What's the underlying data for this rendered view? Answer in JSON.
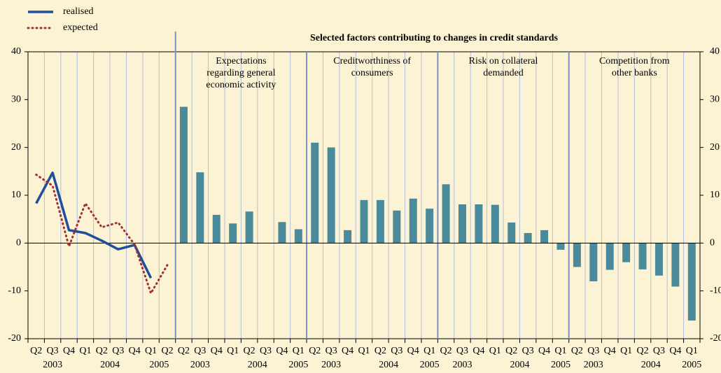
{
  "chart_data": {
    "type": "combo",
    "title": "Selected factors contributing to changes in credit standards",
    "categories": [
      "Q2",
      "Q3",
      "Q4",
      "Q1",
      "Q2",
      "Q3",
      "Q4",
      "Q1",
      "Q2",
      "Q2",
      "Q3",
      "Q4",
      "Q1",
      "Q2",
      "Q3",
      "Q4",
      "Q1",
      "Q2",
      "Q3",
      "Q4",
      "Q1",
      "Q2",
      "Q3",
      "Q4",
      "Q1",
      "Q2",
      "Q3",
      "Q4",
      "Q1",
      "Q2",
      "Q3",
      "Q4",
      "Q1",
      "Q2",
      "Q3",
      "Q4",
      "Q1",
      "Q2",
      "Q3",
      "Q4",
      "Q1"
    ],
    "year_groups": [
      {
        "label": "2003",
        "size": 3
      },
      {
        "label": "2004",
        "size": 4
      },
      {
        "label": "2005",
        "size": 2
      },
      {
        "label": "2003",
        "size": 3
      },
      {
        "label": "2004",
        "size": 4
      },
      {
        "label": "2005",
        "size": 1
      },
      {
        "label": "2003",
        "size": 3
      },
      {
        "label": "2004",
        "size": 4
      },
      {
        "label": "2005",
        "size": 1
      },
      {
        "label": "2003",
        "size": 3
      },
      {
        "label": "2004",
        "size": 4
      },
      {
        "label": "2005",
        "size": 1
      },
      {
        "label": "2003",
        "size": 3
      },
      {
        "label": "2004",
        "size": 4
      },
      {
        "label": "2005",
        "size": 1
      }
    ],
    "sections": [
      {
        "size": 9
      },
      {
        "label": [
          "Expectations",
          "regarding general",
          "economic activity"
        ],
        "size": 8
      },
      {
        "label": [
          "Creditworthiness of",
          "consumers"
        ],
        "size": 8
      },
      {
        "label": [
          "Risk on collateral",
          "demanded"
        ],
        "size": 8
      },
      {
        "label": [
          "Competition from",
          "other banks"
        ],
        "size": 8
      }
    ],
    "series": [
      {
        "name": "realised",
        "type": "line",
        "style": "solid",
        "color": "#1f4e9c",
        "values": [
          8.3,
          14.7,
          2.7,
          2.1,
          0.5,
          -1.3,
          -0.4,
          -7.3,
          null,
          null,
          null,
          null,
          null,
          null,
          null,
          null,
          null,
          null,
          null,
          null,
          null,
          null,
          null,
          null,
          null,
          null,
          null,
          null,
          null,
          null,
          null,
          null,
          null,
          null,
          null,
          null,
          null,
          null,
          null,
          null,
          null
        ]
      },
      {
        "name": "expected",
        "type": "line",
        "style": "dotted",
        "color": "#a33030",
        "values": [
          14.3,
          12.0,
          -0.7,
          8.3,
          3.3,
          4.3,
          -0.3,
          -10.5,
          -4.6,
          null,
          null,
          null,
          null,
          null,
          null,
          null,
          null,
          null,
          null,
          null,
          null,
          null,
          null,
          null,
          null,
          null,
          null,
          null,
          null,
          null,
          null,
          null,
          null,
          null,
          null,
          null,
          null,
          null,
          null,
          null,
          null
        ]
      }
    ],
    "bars": {
      "color": "#4b8a9b",
      "values": [
        null,
        null,
        null,
        null,
        null,
        null,
        null,
        null,
        null,
        28.5,
        14.8,
        5.9,
        4.1,
        6.6,
        0,
        4.4,
        2.9,
        21.0,
        20.0,
        2.7,
        9.0,
        9.0,
        6.8,
        9.3,
        7.2,
        12.3,
        8.1,
        8.1,
        8.0,
        4.3,
        2.1,
        2.7,
        -1.4,
        -5.0,
        -8.0,
        -5.6,
        -4.0,
        -5.5,
        -6.8,
        -9.1,
        -16.2
      ]
    },
    "ylim": [
      -20,
      40
    ],
    "yticks": [
      -20,
      -10,
      0,
      10,
      20,
      30,
      40
    ],
    "grid": true
  }
}
